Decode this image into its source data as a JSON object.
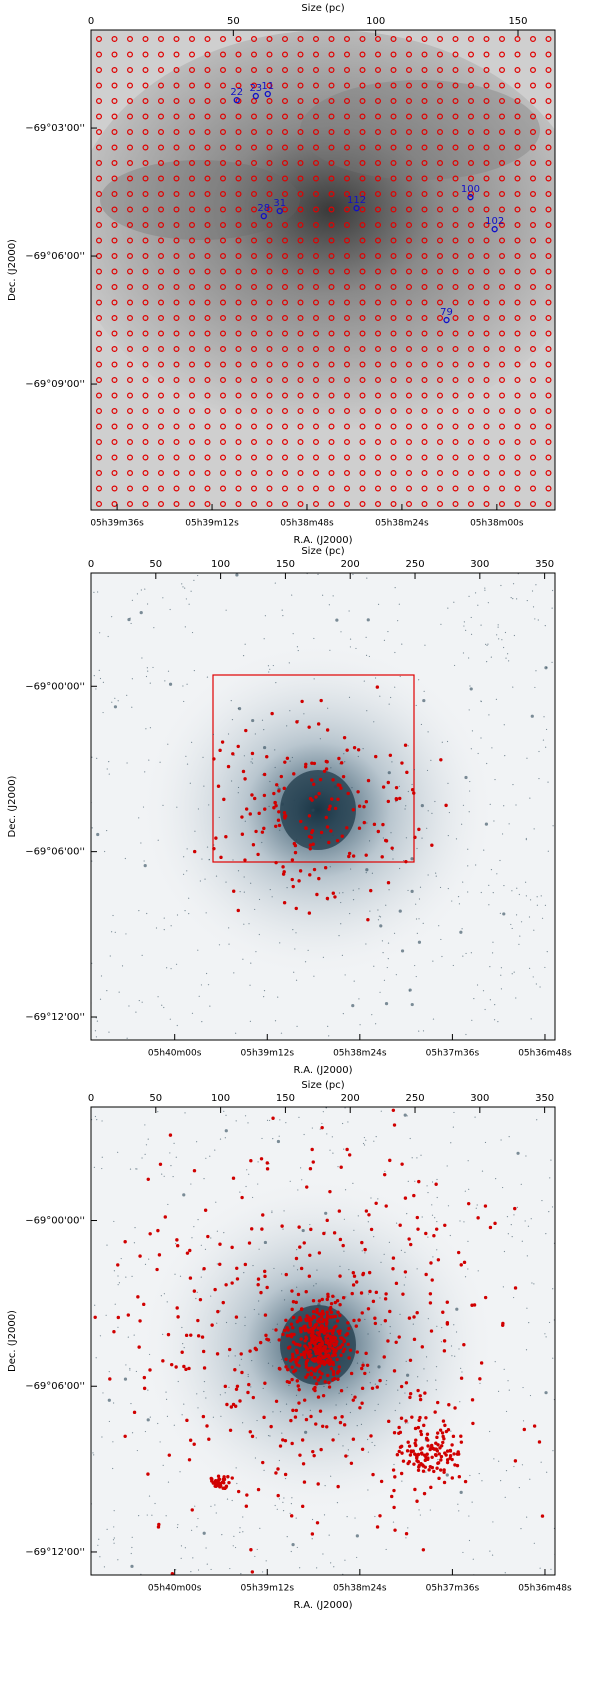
{
  "chart_data": [
    {
      "type": "scatter",
      "x2label": "Size (pc)",
      "x2lim": [
        0,
        163
      ],
      "x2ticks": [
        0,
        50,
        100,
        150
      ],
      "xlabel": "R.A. (J2000)",
      "xlim": [
        20382.6,
        20265.3
      ],
      "xticks": [
        {
          "value": 20376,
          "label": "05h39m36s"
        },
        {
          "value": 20352,
          "label": "05h39m12s"
        },
        {
          "value": 20328,
          "label": "05h38m48s"
        },
        {
          "value": 20304,
          "label": "05h38m24s"
        },
        {
          "value": 20280,
          "label": "05h38m00s"
        }
      ],
      "ylabel": "Dec. (J2000)",
      "ylim": [
        -69.1992,
        -69.0117
      ],
      "yticks": [
        {
          "value": -69.05,
          "label": "−69°03'00''"
        },
        {
          "value": -69.1,
          "label": "−69°06'00''"
        },
        {
          "value": -69.15,
          "label": "−69°09'00''"
        }
      ],
      "color": "#1010c8",
      "points": [
        {
          "label": "22",
          "x": 51.2,
          "y": -69.0391
        },
        {
          "label": "23",
          "x": 57.9,
          "y": -69.0375
        },
        {
          "label": "11",
          "x": 62.1,
          "y": -69.0367
        },
        {
          "label": "28",
          "x": 60.7,
          "y": -69.0844
        },
        {
          "label": "31",
          "x": 66.3,
          "y": -69.0824
        },
        {
          "label": "112",
          "x": 93.3,
          "y": -69.0813
        },
        {
          "label": "100",
          "x": 133.3,
          "y": -69.077
        },
        {
          "label": "102",
          "x": 141.8,
          "y": -69.0895
        },
        {
          "label": "79",
          "x": 124.9,
          "y": -69.125
        }
      ]
    },
    {
      "type": "image",
      "x2label": "Size (pc)",
      "x2lim": [
        0,
        358
      ],
      "x2ticks": [
        0,
        50,
        100,
        150,
        200,
        250,
        300,
        350
      ],
      "xlabel": "R.A. (J2000)",
      "xlim": [
        20443.4,
        20202.8
      ],
      "xticks": [
        {
          "value": 20400,
          "label": "05h40m00s"
        },
        {
          "value": 20352,
          "label": "05h39m12s"
        },
        {
          "value": 20304,
          "label": "05h38m24s"
        },
        {
          "value": 20256,
          "label": "05h37m36s"
        },
        {
          "value": 20208,
          "label": "05h36m48s"
        }
      ],
      "ylabel": "Dec. (J2000)",
      "ylim": [
        -69.2139,
        -68.9315
      ],
      "yticks": [
        {
          "value": -69.0,
          "label": "−69°00'00''"
        },
        {
          "value": -69.1,
          "label": "−69°06'00''"
        },
        {
          "value": -69.2,
          "label": "−69°12'00''"
        }
      ]
    },
    {
      "type": "image",
      "x2label": "Size (pc)",
      "x2lim": [
        0,
        358
      ],
      "x2ticks": [
        0,
        50,
        100,
        150,
        200,
        250,
        300,
        350
      ],
      "xlabel": "R.A. (J2000)",
      "xlim": [
        20443.4,
        20202.8
      ],
      "xticks": [
        {
          "value": 20400,
          "label": "05h40m00s"
        },
        {
          "value": 20352,
          "label": "05h39m12s"
        },
        {
          "value": 20304,
          "label": "05h38m24s"
        },
        {
          "value": 20256,
          "label": "05h37m36s"
        },
        {
          "value": 20208,
          "label": "05h36m48s"
        }
      ],
      "ylabel": "Dec. (J2000)",
      "ylim": [
        -69.2139,
        -68.9315
      ],
      "yticks": [
        {
          "value": -69.0,
          "label": "−69°00'00''"
        },
        {
          "value": -69.1,
          "label": "−69°06'00''"
        },
        {
          "value": -69.2,
          "label": "−69°12'00''"
        }
      ]
    }
  ]
}
